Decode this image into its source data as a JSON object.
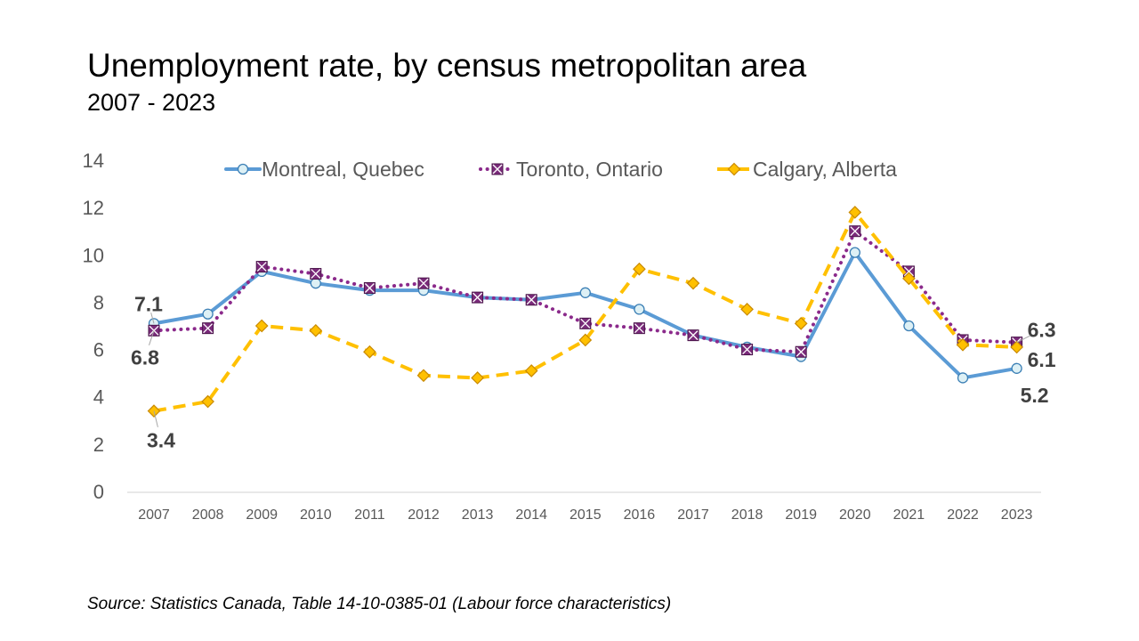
{
  "header": {
    "title": "Unemployment rate, by census metropolitan area",
    "subtitle": "2007 - 2023"
  },
  "footer": {
    "source": "Source: Statistics Canada, Table 14-10-0385-01  (Labour force characteristics)"
  },
  "chart_data": {
    "type": "line",
    "title": "",
    "xlabel": "",
    "ylabel": "",
    "ylim": [
      0,
      14
    ],
    "yticks": [
      0,
      2,
      4,
      6,
      8,
      10,
      12,
      14
    ],
    "grid": false,
    "legend_position": "top",
    "x": [
      "2007",
      "2008",
      "2009",
      "2010",
      "2011",
      "2012",
      "2013",
      "2014",
      "2015",
      "2016",
      "2017",
      "2018",
      "2019",
      "2020",
      "2021",
      "2022",
      "2023"
    ],
    "series": [
      {
        "name": "Montreal, Quebec",
        "color": "#5B9BD5",
        "marker": "circle",
        "line_style": "solid",
        "values": [
          7.1,
          7.5,
          9.3,
          8.8,
          8.5,
          8.5,
          8.2,
          8.1,
          8.4,
          7.7,
          6.6,
          6.1,
          5.7,
          10.1,
          7.0,
          4.8,
          5.2
        ]
      },
      {
        "name": "Toronto, Ontario",
        "color": "#8B2A8B",
        "marker": "square",
        "line_style": "dotted",
        "values": [
          6.8,
          6.9,
          9.5,
          9.2,
          8.6,
          8.8,
          8.2,
          8.1,
          7.1,
          6.9,
          6.6,
          6.0,
          5.9,
          11.0,
          9.3,
          6.4,
          6.3
        ]
      },
      {
        "name": "Calgary, Alberta",
        "color": "#FFC000",
        "marker": "diamond",
        "line_style": "dashed",
        "values": [
          3.4,
          3.8,
          7.0,
          6.8,
          5.9,
          4.9,
          4.8,
          5.1,
          6.4,
          9.4,
          8.8,
          7.7,
          7.1,
          11.8,
          9.0,
          6.2,
          6.1
        ]
      }
    ],
    "data_labels": [
      {
        "series": "Montreal, Quebec",
        "x": "2007",
        "text": "7.1"
      },
      {
        "series": "Toronto, Ontario",
        "x": "2007",
        "text": "6.8"
      },
      {
        "series": "Calgary, Alberta",
        "x": "2007",
        "text": "3.4"
      },
      {
        "series": "Toronto, Ontario",
        "x": "2023",
        "text": "6.3"
      },
      {
        "series": "Calgary, Alberta",
        "x": "2023",
        "text": "6.1"
      },
      {
        "series": "Montreal, Quebec",
        "x": "2023",
        "text": "5.2"
      }
    ]
  }
}
